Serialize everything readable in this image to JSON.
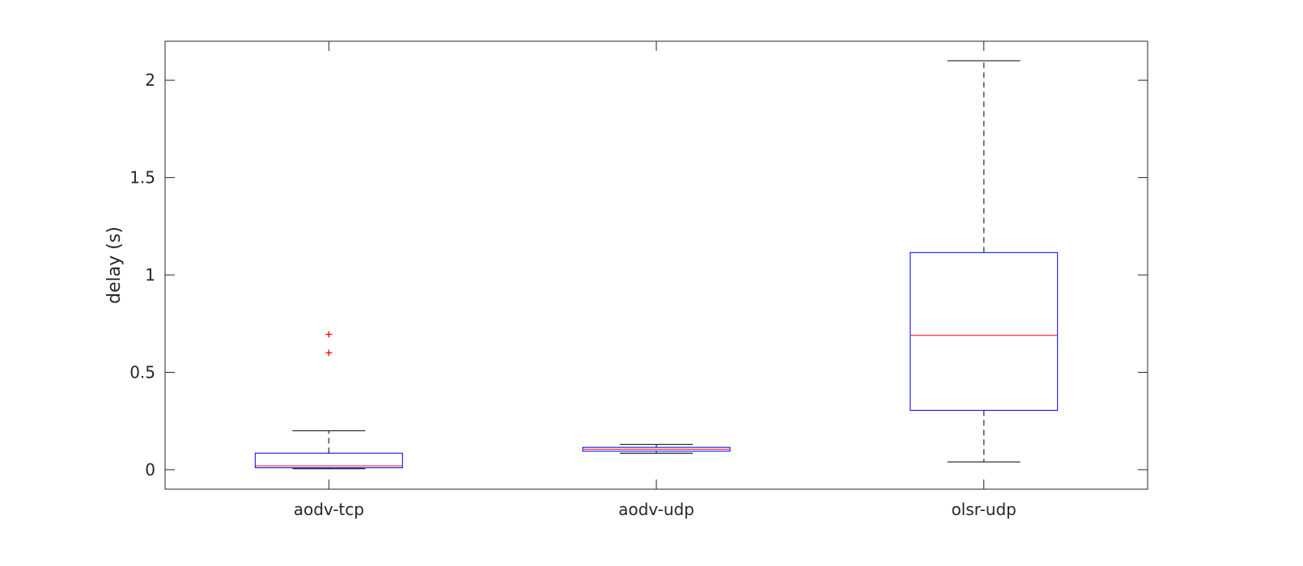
{
  "chart_data": {
    "type": "boxplot",
    "ylabel": "delay (s)",
    "ylim": [
      -0.1,
      2.2
    ],
    "yticks": [
      0,
      0.5,
      1,
      1.5,
      2
    ],
    "ytick_labels": [
      "0",
      "0.5",
      "1",
      "1.5",
      "2"
    ],
    "categories": [
      "aodv-tcp",
      "aodv-udp",
      "olsr-udp"
    ],
    "boxes": [
      {
        "category": "aodv-tcp",
        "whisker_low": 0.005,
        "q1": 0.01,
        "median": 0.02,
        "q3": 0.085,
        "whisker_high": 0.2,
        "outliers": [
          0.6,
          0.695
        ]
      },
      {
        "category": "aodv-udp",
        "whisker_low": 0.085,
        "q1": 0.095,
        "median": 0.105,
        "q3": 0.115,
        "whisker_high": 0.13,
        "outliers": []
      },
      {
        "category": "olsr-udp",
        "whisker_low": 0.04,
        "q1": 0.305,
        "median": 0.69,
        "q3": 1.115,
        "whisker_high": 2.1,
        "outliers": []
      }
    ],
    "colors": {
      "box": "#0000ff",
      "median": "#ff0000",
      "whisker": "#4d4d4d",
      "cap": "#000000",
      "outlier": "#ff0000",
      "axis": "#262626"
    },
    "grid": false
  }
}
